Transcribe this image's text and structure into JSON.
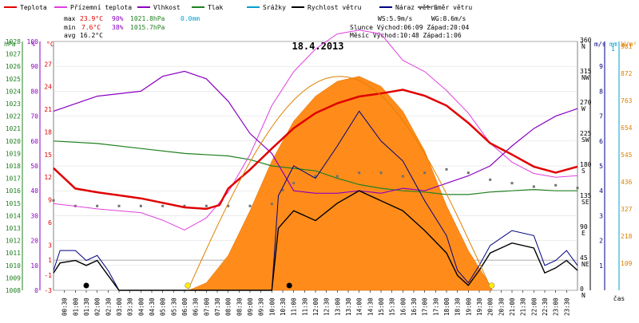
{
  "chart_data": {
    "type": "line",
    "title": "18.4.2013",
    "legend": [
      {
        "name": "Teplota",
        "color": "#e00000"
      },
      {
        "name": "Přízemní teplota",
        "color": "#e040e0"
      },
      {
        "name": "Vlhkost",
        "color": "#8a00c0"
      },
      {
        "name": "Tlak",
        "color": "#208020"
      },
      {
        "name": "Srážky",
        "color": "#00a0d0"
      },
      {
        "name": "Rychlost větru",
        "color": "#000000"
      },
      {
        "name": "Náraz větru",
        "color": "#000080"
      },
      {
        "name": "Směr větru",
        "color": "#707070"
      }
    ],
    "stats": {
      "max_label": "max",
      "max_temp": "23.9°C",
      "max_hum": "90%",
      "max_press": "1021.8hPa",
      "max_rain": "0.0mm",
      "min_label": "min",
      "min_temp": "7.6°C",
      "min_hum": "38%",
      "min_press": "1015.7hPa",
      "avg_label": "avg",
      "avg_temp": "16.2°C"
    },
    "info": {
      "ws": "WS:5.9m/s",
      "wg": "WG:8.6m/s",
      "sun": "Slunce Východ:06:09 Západ:20:04",
      "moon": "Měsíc Východ:10:48 Západ:1:06"
    },
    "axis_units": {
      "hpa": "hPa",
      "pct": "%",
      "degc": "°C",
      "deg": "°",
      "ms": "m/s",
      "mm": "mm",
      "wm2": "W/m²"
    },
    "xlabel": "čas",
    "axes": {
      "hpa": [
        "1028",
        "1027",
        "1026",
        "1025",
        "1024",
        "1023",
        "1022",
        "1021",
        "1020",
        "1019",
        "1018",
        "1017",
        "1016",
        "1015",
        "1014",
        "1013",
        "1012",
        "1011",
        "1010",
        "1009",
        "1008"
      ],
      "pct": [
        "100",
        "90",
        "80",
        "70",
        "60",
        "50",
        "40",
        "30",
        "20",
        "10",
        "0"
      ],
      "degc": [
        "27",
        "24",
        "21",
        "18",
        "15",
        "12",
        "9",
        "6",
        "3",
        "1",
        "-1",
        "-3"
      ],
      "deg": [
        "360",
        "315",
        "270",
        "225",
        "180",
        "135",
        "90",
        "45",
        "0"
      ],
      "dir": [
        "N",
        "NW",
        "W",
        "SW",
        "S",
        "SE",
        "E",
        "NE",
        "N"
      ],
      "ms": [
        "9",
        "8",
        "7",
        "6",
        "5",
        "4",
        "3",
        "2",
        "1"
      ],
      "mm": [
        "1",
        "1"
      ],
      "wm2": [
        "981",
        "872",
        "763",
        "654",
        "545",
        "436",
        "327",
        "218",
        "109"
      ]
    },
    "x_ticks": [
      "00:30",
      "01:00",
      "01:30",
      "02:00",
      "02:30",
      "03:00",
      "03:30",
      "04:00",
      "04:30",
      "05:00",
      "05:30",
      "06:00",
      "06:30",
      "07:00",
      "07:30",
      "08:00",
      "08:30",
      "09:00",
      "09:30",
      "10:00",
      "10:30",
      "11:00",
      "11:30",
      "12:00",
      "12:30",
      "13:00",
      "13:30",
      "14:00",
      "14:30",
      "15:00",
      "15:30",
      "16:00",
      "16:30",
      "17:00",
      "17:30",
      "18:00",
      "18:30",
      "19:00",
      "19:30",
      "20:00",
      "20:30",
      "21:00",
      "21:30",
      "22:00",
      "22:30",
      "23:00",
      "23:30"
    ],
    "temp": [
      [
        0,
        13.2
      ],
      [
        1,
        10.5
      ],
      [
        2,
        10.0
      ],
      [
        3,
        9.6
      ],
      [
        4,
        9.2
      ],
      [
        5,
        8.6
      ],
      [
        6,
        8.0
      ],
      [
        7,
        7.8
      ],
      [
        7.6,
        8.3
      ],
      [
        8,
        10.5
      ],
      [
        9,
        13.0
      ],
      [
        10,
        15.8
      ],
      [
        11,
        18.5
      ],
      [
        12,
        20.5
      ],
      [
        13,
        21.8
      ],
      [
        14,
        22.7
      ],
      [
        15,
        23.1
      ],
      [
        16,
        23.6
      ],
      [
        17,
        22.8
      ],
      [
        18,
        21.5
      ],
      [
        19,
        19.2
      ],
      [
        20,
        16.5
      ],
      [
        21,
        15.0
      ],
      [
        22,
        13.4
      ],
      [
        23,
        12.6
      ],
      [
        24,
        13.4
      ]
    ],
    "ground_temp": [
      [
        0,
        8.5
      ],
      [
        2,
        7.8
      ],
      [
        4,
        7.3
      ],
      [
        5,
        6.3
      ],
      [
        6,
        5.0
      ],
      [
        7,
        6.6
      ],
      [
        8,
        10.0
      ],
      [
        9,
        15.0
      ],
      [
        10,
        21.5
      ],
      [
        11,
        26.0
      ],
      [
        12,
        29.0
      ],
      [
        13,
        31.0
      ],
      [
        14,
        31.5
      ],
      [
        15,
        31.0
      ],
      [
        16,
        27.5
      ],
      [
        17,
        26.0
      ],
      [
        18,
        23.5
      ],
      [
        19,
        20.5
      ],
      [
        20,
        16.5
      ],
      [
        21,
        14.0
      ],
      [
        22,
        12.5
      ],
      [
        23,
        12.0
      ],
      [
        24,
        12.2
      ]
    ],
    "humidity": [
      [
        0,
        72
      ],
      [
        2,
        78
      ],
      [
        4,
        80
      ],
      [
        5,
        86
      ],
      [
        6,
        88
      ],
      [
        7,
        85
      ],
      [
        8,
        76
      ],
      [
        9,
        63
      ],
      [
        10,
        55
      ],
      [
        10.8,
        43
      ],
      [
        11,
        40
      ],
      [
        12,
        39
      ],
      [
        13,
        39
      ],
      [
        14,
        40
      ],
      [
        15,
        39
      ],
      [
        16,
        41
      ],
      [
        17,
        40
      ],
      [
        18,
        43
      ],
      [
        19,
        46
      ],
      [
        20,
        50
      ],
      [
        21,
        58
      ],
      [
        22,
        65
      ],
      [
        23,
        70
      ],
      [
        24,
        73
      ]
    ],
    "pressure": [
      [
        0,
        1020.0
      ],
      [
        2,
        1019.8
      ],
      [
        4,
        1019.4
      ],
      [
        6,
        1019.0
      ],
      [
        8,
        1018.8
      ],
      [
        9,
        1018.5
      ],
      [
        10,
        1018.0
      ],
      [
        11,
        1017.8
      ],
      [
        12,
        1017.6
      ],
      [
        13,
        1017.0
      ],
      [
        14,
        1016.5
      ],
      [
        15,
        1016.2
      ],
      [
        16,
        1016.0
      ],
      [
        17,
        1015.9
      ],
      [
        18,
        1015.7
      ],
      [
        19,
        1015.7
      ],
      [
        20,
        1015.9
      ],
      [
        21,
        1016.0
      ],
      [
        22,
        1016.1
      ],
      [
        23,
        1016.0
      ],
      [
        24,
        1016.0
      ]
    ],
    "wind_speed": [
      [
        0,
        0.7
      ],
      [
        0.3,
        1.1
      ],
      [
        1,
        1.2
      ],
      [
        1.5,
        1.0
      ],
      [
        2,
        1.2
      ],
      [
        2.5,
        0.6
      ],
      [
        3,
        0.0
      ],
      [
        10,
        0.0
      ],
      [
        10.3,
        2.5
      ],
      [
        11,
        3.2
      ],
      [
        12,
        2.8
      ],
      [
        13,
        3.5
      ],
      [
        14,
        4.0
      ],
      [
        15,
        3.6
      ],
      [
        16,
        3.2
      ],
      [
        17,
        2.4
      ],
      [
        18,
        1.5
      ],
      [
        18.5,
        0.6
      ],
      [
        19,
        0.2
      ],
      [
        19.5,
        0.8
      ],
      [
        20,
        1.5
      ],
      [
        21,
        1.9
      ],
      [
        22,
        1.7
      ],
      [
        22.5,
        0.7
      ],
      [
        23,
        0.9
      ],
      [
        23.5,
        1.2
      ],
      [
        24,
        0.8
      ]
    ],
    "wind_gust": [
      [
        0,
        0.8
      ],
      [
        0.3,
        1.6
      ],
      [
        1,
        1.6
      ],
      [
        1.5,
        1.2
      ],
      [
        2,
        1.4
      ],
      [
        2.5,
        0.8
      ],
      [
        3,
        0.0
      ],
      [
        10,
        0.0
      ],
      [
        10.3,
        3.8
      ],
      [
        11,
        5.0
      ],
      [
        12,
        4.5
      ],
      [
        13,
        5.8
      ],
      [
        14,
        7.2
      ],
      [
        15,
        6.0
      ],
      [
        16,
        5.2
      ],
      [
        17,
        3.6
      ],
      [
        18,
        2.2
      ],
      [
        18.5,
        0.8
      ],
      [
        19,
        0.3
      ],
      [
        19.5,
        1.0
      ],
      [
        20,
        1.8
      ],
      [
        21,
        2.4
      ],
      [
        22,
        2.2
      ],
      [
        22.5,
        1.0
      ],
      [
        23,
        1.2
      ],
      [
        23.5,
        1.6
      ],
      [
        24,
        1.0
      ]
    ],
    "wind_dir": [
      [
        0,
        130
      ],
      [
        1,
        122
      ],
      [
        2,
        122
      ],
      [
        3,
        122
      ],
      [
        4,
        122
      ],
      [
        5,
        122
      ],
      [
        6,
        122
      ],
      [
        7,
        122
      ],
      [
        8,
        122
      ],
      [
        9,
        122
      ],
      [
        10,
        125
      ],
      [
        10.5,
        145
      ],
      [
        11,
        155
      ],
      [
        12,
        165
      ],
      [
        13,
        165
      ],
      [
        14,
        170
      ],
      [
        15,
        170
      ],
      [
        16,
        165
      ],
      [
        17,
        170
      ],
      [
        18,
        175
      ],
      [
        19,
        170
      ],
      [
        20,
        160
      ],
      [
        21,
        155
      ],
      [
        22,
        150
      ],
      [
        23,
        152
      ],
      [
        24,
        148
      ]
    ],
    "solar": [
      [
        6.2,
        0
      ],
      [
        7,
        30
      ],
      [
        8,
        140
      ],
      [
        9,
        320
      ],
      [
        10,
        520
      ],
      [
        11,
        680
      ],
      [
        12,
        780
      ],
      [
        13,
        840
      ],
      [
        14,
        860
      ],
      [
        15,
        820
      ],
      [
        16,
        720
      ],
      [
        17,
        560
      ],
      [
        18,
        340
      ],
      [
        19,
        160
      ],
      [
        20,
        20
      ],
      [
        20.1,
        0
      ]
    ],
    "ylim_temp": [
      -3,
      30
    ],
    "ylim_pct": [
      0,
      100
    ],
    "ylim_hpa": [
      1008,
      1028
    ],
    "ylim_ms": [
      0,
      10
    ],
    "ylim_deg": [
      0,
      360
    ],
    "ylim_wm2": [
      0,
      1000
    ],
    "xlim": [
      0,
      24
    ]
  }
}
